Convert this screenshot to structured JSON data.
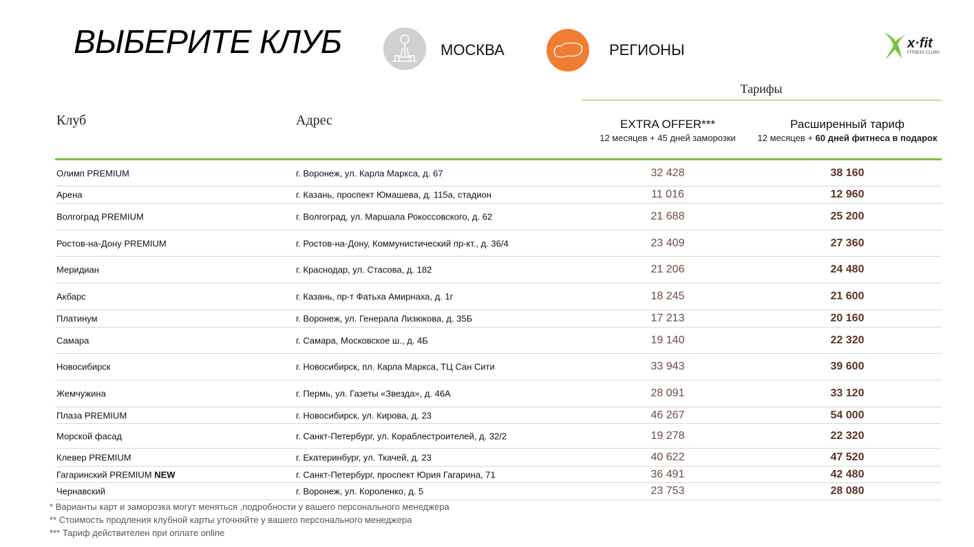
{
  "header": {
    "title": "ВЫБЕРИТЕ КЛУБ",
    "moscow": "МОСКВА",
    "regions": "РЕГИОНЫ",
    "logo": "x·fit",
    "logo_sub": "FITNESS CLUBS"
  },
  "table": {
    "group_header": "Тарифы",
    "columns": {
      "club": "Клуб",
      "address": "Адрес",
      "extra": "EXTRA OFFER***",
      "extra_note": "12 месяцев + 45 дней заморозки",
      "extended": "Расширенный тариф",
      "extended_note": [
        "12 месяцев + ",
        "60 дней фитнеса в подарок"
      ]
    },
    "rows": [
      {
        "club": "Олимп PREMIUM",
        "address": "г. Воронеж, ул. Карла Маркса, д. 67",
        "extra": "32 428",
        "extended": "38 160"
      },
      {
        "club": "Арена",
        "address": "г. Казань, проспект Юмашева, д. 115а, стадион",
        "extra": "11 016",
        "extended": "12 960"
      },
      {
        "club": "Волгоград PREMIUM",
        "address": "г. Волгоград, ул. Маршала Рокоссовского, д. 62",
        "extra": "21 688",
        "extended": "25 200"
      },
      {
        "club": "Ростов-на-Дону PREMIUM",
        "address": "г. Ростов-на-Дону, Коммунистический пр-кт.,  д. 36/4",
        "extra": "23 409",
        "extended": "27 360"
      },
      {
        "club": "Меридиан",
        "address": "г. Краснодар, ул. Стасова, д. 182",
        "extra": "21 206",
        "extended": "24 480"
      },
      {
        "club": "Акбарс",
        "address": "г. Казань, пр-т Фатьха Амирнаха, д. 1г",
        "extra": "18 245",
        "extended": "21 600"
      },
      {
        "club": "Платинум",
        "address": "г. Воронеж, ул. Генерала Лизюкова, д. 35Б",
        "extra": "17 213",
        "extended": "20 160"
      },
      {
        "club": "Самара",
        "address": "г. Самара, Московское ш., д. 4Б",
        "extra": "19 140",
        "extended": "22 320"
      },
      {
        "club": "Новосибирск",
        "address": "г. Новосибирск, пл. Карла Маркса, ТЦ Сан Сити",
        "extra": "33 943",
        "extended": "39 600"
      },
      {
        "club": "Жемчужина",
        "address": "г. Пермь, ул. Газеты «Звезда», д. 46А",
        "extra": "28 091",
        "extended": "33 120"
      },
      {
        "club": "Плаза PREMIUM",
        "address": "г. Новосибирск, ул. Кирова, д. 23",
        "extra": "46 267",
        "extended": "54 000"
      },
      {
        "club": "Морской фасад",
        "address": "г. Санкт-Петербург, ул. Кораблестроителей, д. 32/2",
        "extra": "19 278",
        "extended": "22 320"
      },
      {
        "club": "Клевер PREMIUM",
        "address": "г. Екатеринбург, ул. Ткачей, д. 23",
        "extra": "40 622",
        "extended": "47 520"
      },
      {
        "club": "Гагаринский PREMIUM",
        "club_tag": "NEW",
        "address": "г. Санкт-Петербург, проспект Юрия Гагарина, 71",
        "extra": "36 491",
        "extended": "42 480"
      },
      {
        "club": "Чернавский",
        "address": "г. Воронеж, ул. Короленко, д. 5",
        "extra": "23 753",
        "extended": "28 080"
      }
    ]
  },
  "footnotes": [
    "* Варианты карт и заморозка могут меняться ,подробности у вашего персонального менеджера",
    "** Стоимость продления клубной карты уточняйте у вашего персонального менеджера",
    "*** Тариф действителен при оплате online"
  ]
}
